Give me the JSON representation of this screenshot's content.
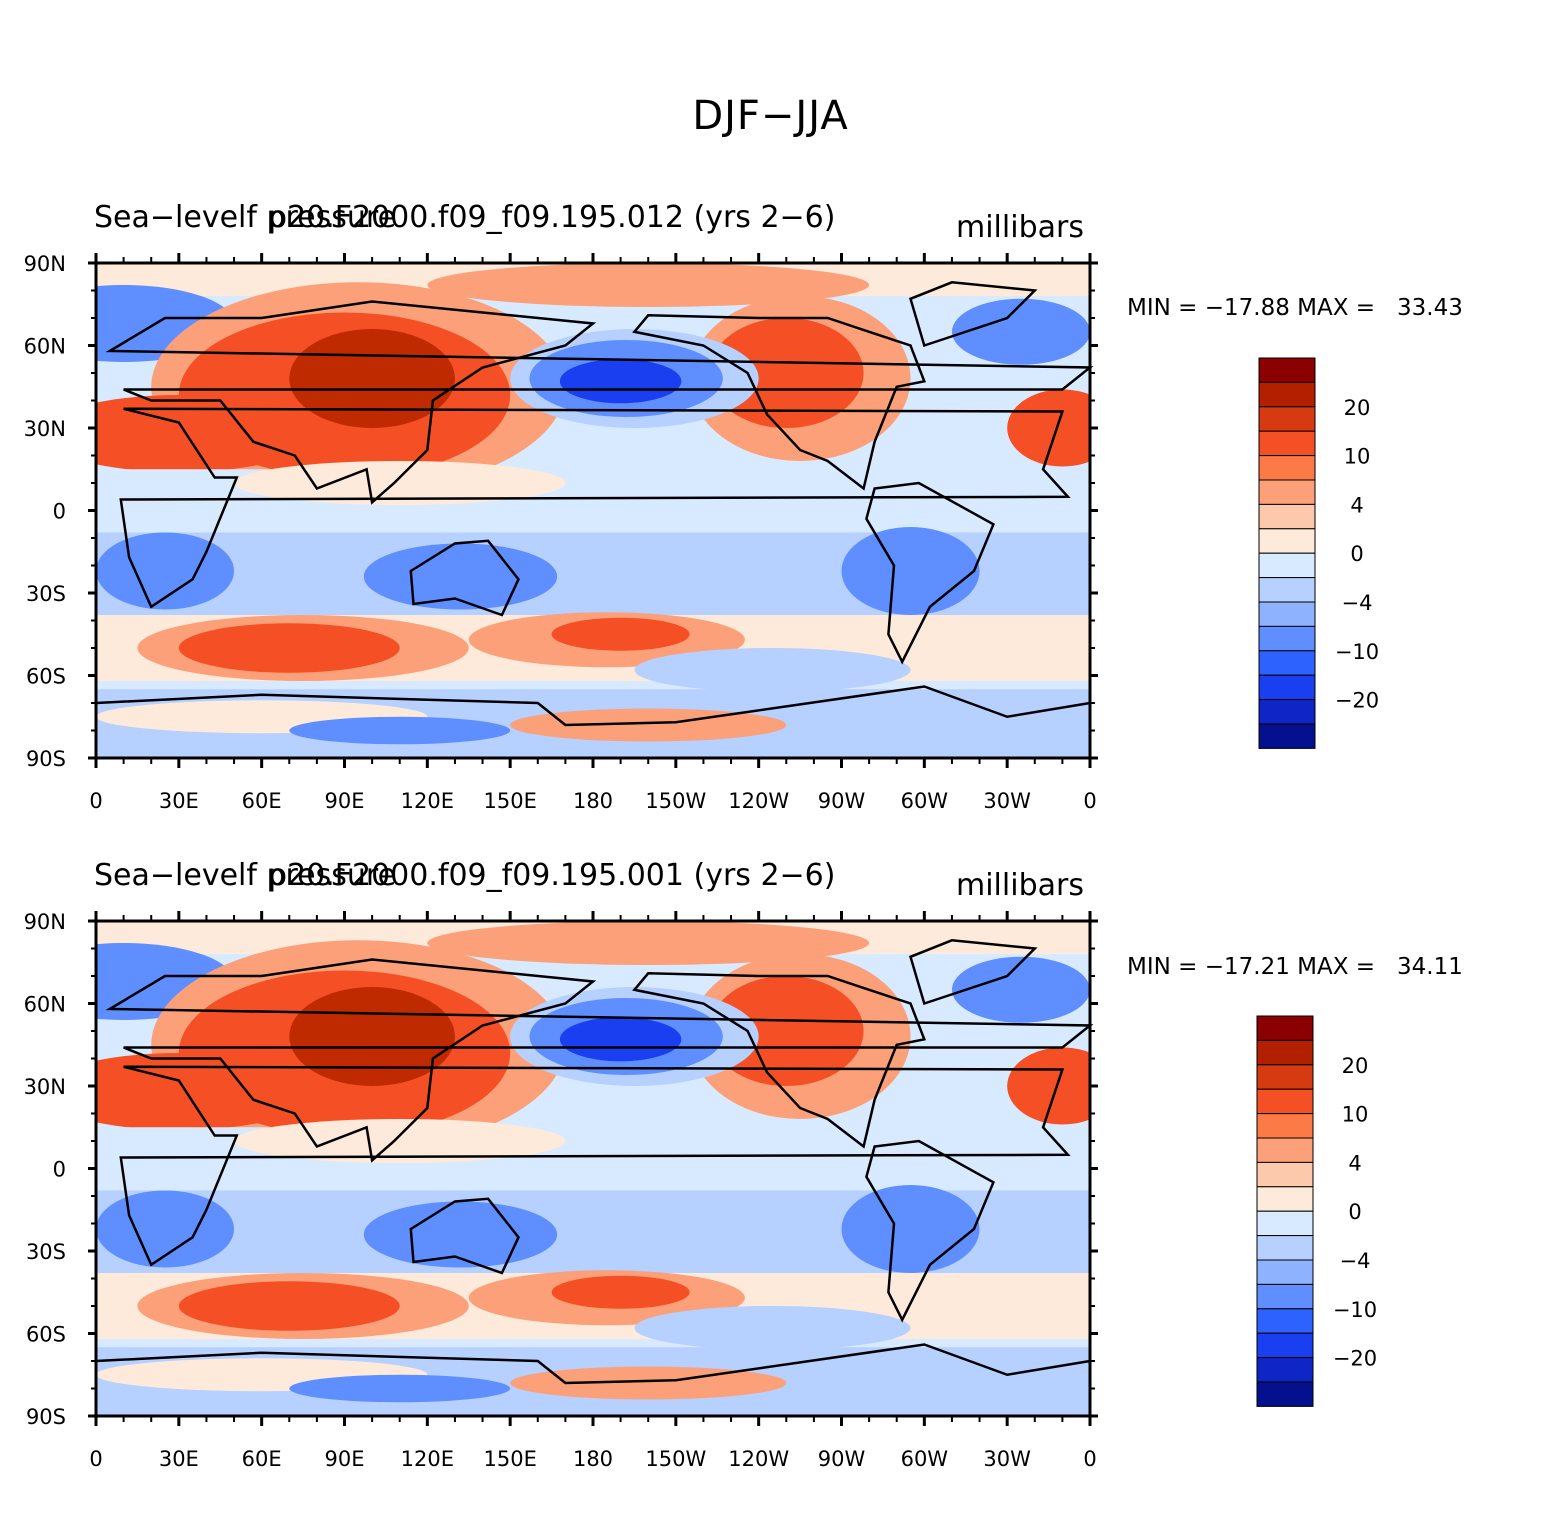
{
  "title": "DJF−JJA",
  "panels": [
    {
      "left_title": "Sea−levelf pressure",
      "center_title": "p20.F2000.f09_f09.195.012 (yrs 2−6)",
      "units": "millibars",
      "min_max": "MIN = −17.88 MAX =   33.43"
    },
    {
      "left_title": "Sea−levelf pressure",
      "center_title": "p20.F2000.f09_f09.195.001 (yrs 2−6)",
      "units": "millibars",
      "min_max": "MIN = −17.21 MAX =   34.11"
    }
  ],
  "axes": {
    "lat_ticks": [
      "90N",
      "60N",
      "30N",
      "0",
      "30S",
      "60S",
      "90S"
    ],
    "lon_ticks": [
      "0",
      "30E",
      "60E",
      "90E",
      "120E",
      "150E",
      "180",
      "150W",
      "120W",
      "90W",
      "60W",
      "30W",
      "0"
    ]
  },
  "colorbar": {
    "colors": [
      "#8b0000",
      "#b32000",
      "#d63a10",
      "#f55025",
      "#fb7a45",
      "#fca07a",
      "#fdc9ad",
      "#feeadb",
      "#d8eaff",
      "#b6d0ff",
      "#8fb2ff",
      "#5e8eff",
      "#2e62ff",
      "#1a3ff0",
      "#0f25c6",
      "#05108f"
    ],
    "labels": [
      "20",
      "10",
      "4",
      "0",
      "−4",
      "−10",
      "−20"
    ]
  },
  "palette": {
    "warm_strong": "#c02a00",
    "warm": "#f55025",
    "warm_light": "#fca07a",
    "neutral_warm": "#feeadb",
    "neutral_cool": "#d8eaff",
    "cool_light": "#b6d0ff",
    "cool": "#5e8eff",
    "cool_strong": "#1a3ff0"
  }
}
